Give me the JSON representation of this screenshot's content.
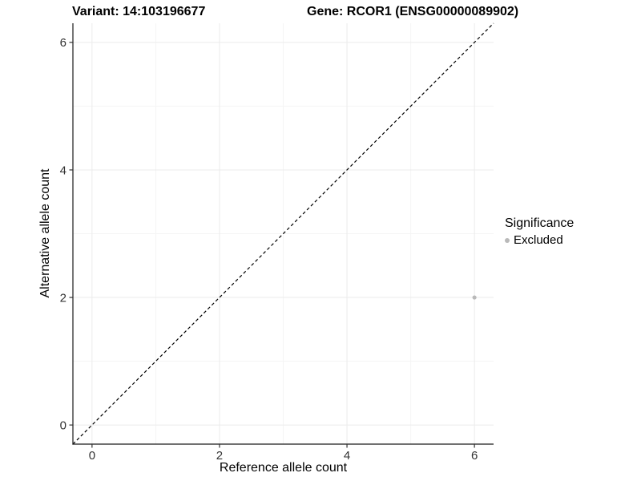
{
  "page": {
    "background": "#ffffff"
  },
  "header": {
    "variant_title": "Variant: 14:103196677",
    "gene_title": "Gene: RCOR1 (ENSG00000089902)"
  },
  "legend": {
    "title": "Significance",
    "entries": [
      {
        "label": "Excluded",
        "color": "#b9b9b9"
      }
    ]
  },
  "chart_data": {
    "type": "scatter",
    "title": "Variant: 14:103196677 — Gene: RCOR1 (ENSG00000089902)",
    "xlabel": "Reference allele count",
    "ylabel": "Alternative allele count",
    "xlim": [
      -0.3,
      6.3
    ],
    "ylim": [
      -0.3,
      6.3
    ],
    "x_ticks": [
      0,
      2,
      4,
      6
    ],
    "y_ticks": [
      0,
      2,
      4,
      6
    ],
    "x_minor_ticks": [
      1,
      3,
      5
    ],
    "y_minor_ticks": [
      1,
      3,
      5
    ],
    "grid": "major+minor",
    "legend_position": "right",
    "series": [
      {
        "name": "Excluded",
        "color": "#b9b9b9",
        "marker": "circle",
        "points": [
          {
            "x": 6,
            "y": 2
          }
        ]
      }
    ],
    "reference_line": {
      "kind": "identity",
      "from": {
        "x": -0.3,
        "y": -0.3
      },
      "to": {
        "x": 6.3,
        "y": 6.3
      },
      "style": "dashed",
      "color": "#000000"
    }
  },
  "style_colors": {
    "grid_major": "#ebebeb",
    "grid_minor": "#f5f5f5",
    "axis_line": "#1a1a1a",
    "tick_mark": "#333333",
    "tick_label": "#333333",
    "point": "#b9b9b9"
  }
}
